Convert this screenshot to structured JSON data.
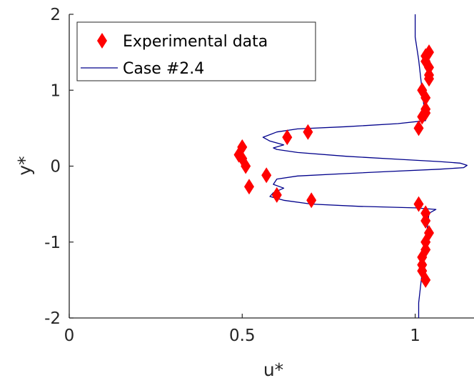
{
  "chart_data": {
    "type": "scatter",
    "xlabel": "u*",
    "ylabel": "y*",
    "xlim": [
      0,
      1.17
    ],
    "ylim": [
      -2,
      2
    ],
    "xticks": [
      0,
      0.5,
      1
    ],
    "xtick_labels": [
      "0",
      "0.5",
      "1"
    ],
    "yticks": [
      -2,
      -1,
      0,
      1,
      2
    ],
    "ytick_labels": [
      "-2",
      "-1",
      "0",
      "1",
      "2"
    ],
    "grid": false,
    "legend_position": "top-left",
    "series": [
      {
        "name": "Experimental data",
        "kind": "markers",
        "marker": "diamond",
        "color": "#ff0000",
        "points": [
          [
            1.04,
            1.5
          ],
          [
            1.03,
            1.45
          ],
          [
            1.03,
            1.38
          ],
          [
            1.04,
            1.3
          ],
          [
            1.04,
            1.2
          ],
          [
            1.04,
            1.15
          ],
          [
            1.02,
            1.0
          ],
          [
            1.03,
            0.9
          ],
          [
            1.03,
            0.75
          ],
          [
            1.03,
            0.7
          ],
          [
            1.02,
            0.65
          ],
          [
            1.01,
            0.5
          ],
          [
            0.69,
            0.45
          ],
          [
            0.63,
            0.38
          ],
          [
            0.5,
            0.25
          ],
          [
            0.49,
            0.15
          ],
          [
            0.5,
            0.1
          ],
          [
            0.51,
            0.0
          ],
          [
            0.57,
            -0.12
          ],
          [
            0.52,
            -0.27
          ],
          [
            0.6,
            -0.38
          ],
          [
            0.7,
            -0.45
          ],
          [
            1.01,
            -0.5
          ],
          [
            1.03,
            -0.62
          ],
          [
            1.03,
            -0.72
          ],
          [
            1.04,
            -0.88
          ],
          [
            1.03,
            -1.0
          ],
          [
            1.03,
            -1.1
          ],
          [
            1.02,
            -1.2
          ],
          [
            1.02,
            -1.3
          ],
          [
            1.02,
            -1.38
          ],
          [
            1.03,
            -1.5
          ]
        ]
      },
      {
        "name": "Case #2.4",
        "kind": "line",
        "color": "#00008b",
        "points": [
          [
            1.0,
            2.0
          ],
          [
            1.0,
            1.7
          ],
          [
            1.01,
            1.4
          ],
          [
            1.02,
            1.0
          ],
          [
            1.03,
            0.6
          ],
          [
            0.95,
            0.56
          ],
          [
            0.8,
            0.52
          ],
          [
            0.66,
            0.49
          ],
          [
            0.6,
            0.45
          ],
          [
            0.56,
            0.38
          ],
          [
            0.58,
            0.33
          ],
          [
            0.62,
            0.28
          ],
          [
            0.59,
            0.24
          ],
          [
            0.6,
            0.22
          ],
          [
            0.66,
            0.18
          ],
          [
            0.8,
            0.13
          ],
          [
            0.95,
            0.09
          ],
          [
            1.07,
            0.06
          ],
          [
            1.13,
            0.04
          ],
          [
            1.15,
            0.01
          ],
          [
            1.14,
            -0.02
          ],
          [
            1.07,
            -0.04
          ],
          [
            0.93,
            -0.07
          ],
          [
            0.79,
            -0.1
          ],
          [
            0.66,
            -0.13
          ],
          [
            0.6,
            -0.17
          ],
          [
            0.59,
            -0.24
          ],
          [
            0.62,
            -0.29
          ],
          [
            0.59,
            -0.35
          ],
          [
            0.58,
            -0.4
          ],
          [
            0.62,
            -0.45
          ],
          [
            0.7,
            -0.5
          ],
          [
            0.84,
            -0.53
          ],
          [
            1.0,
            -0.55
          ],
          [
            1.06,
            -0.57
          ],
          [
            1.04,
            -0.62
          ],
          [
            1.03,
            -1.0
          ],
          [
            1.02,
            -1.4
          ],
          [
            1.01,
            -1.8
          ],
          [
            1.01,
            -2.0
          ]
        ]
      }
    ]
  }
}
